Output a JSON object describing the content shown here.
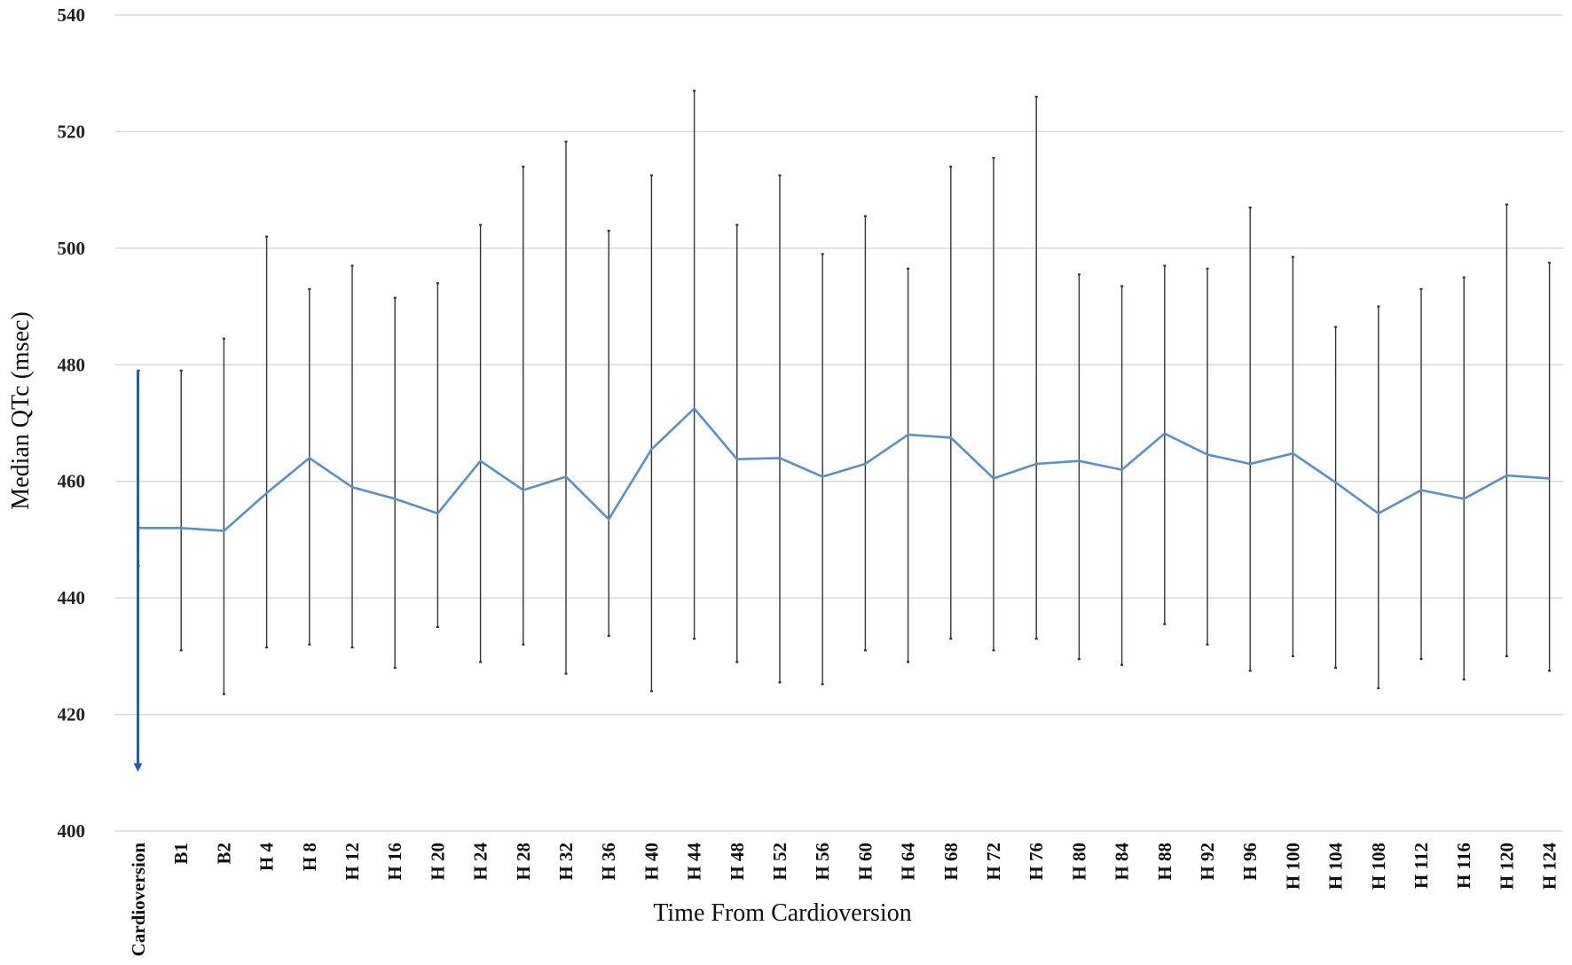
{
  "chart_data": {
    "type": "line",
    "title": "",
    "xlabel": "Time From Cardioversion",
    "ylabel": "Median QTc (msec)",
    "ylim": [
      400,
      540
    ],
    "yticks": [
      400,
      420,
      440,
      460,
      480,
      500,
      520,
      540
    ],
    "grid": true,
    "legend": "none",
    "categories": [
      "Cardioversion",
      "B1",
      "B2",
      "H 4",
      "H 8",
      "H 12",
      "H 16",
      "H 20",
      "H 24",
      "H 28",
      "H 32",
      "H 36",
      "H 40",
      "H 44",
      "H 48",
      "H 52",
      "H 56",
      "H 60",
      "H 64",
      "H 68",
      "H 72",
      "H 76",
      "H 80",
      "H 84",
      "H 88",
      "H 92",
      "H 96",
      "H 100",
      "H 104",
      "H 108",
      "H 112",
      "H 116",
      "H 120",
      "H 124"
    ],
    "series": [
      {
        "values": [
          452,
          452,
          451.5,
          458,
          464,
          459,
          457,
          454.5,
          463.5,
          458.5,
          460.8,
          453.5,
          465.5,
          472.5,
          463.8,
          464,
          460.8,
          463,
          468,
          467.5,
          460.5,
          463,
          463.5,
          462,
          468.2,
          464.6,
          463,
          464.8,
          459.8,
          454.5,
          458.5,
          457,
          461,
          460.5
        ],
        "error_high": [
          479,
          479,
          484.5,
          502,
          493,
          497,
          491.5,
          494,
          504,
          514,
          518.3,
          503,
          512.5,
          527,
          504,
          512.5,
          499,
          505.5,
          496.5,
          514,
          515.5,
          526,
          495.5,
          493.5,
          497,
          496.5,
          507,
          498.5,
          486.5,
          490,
          493,
          495,
          507.5,
          497.5
        ],
        "error_low": [
          445.5,
          431,
          423.5,
          431.5,
          432,
          431.5,
          428,
          435,
          429,
          432,
          427,
          433.5,
          424,
          433,
          429,
          425.5,
          425.2,
          431,
          429,
          433,
          431,
          433,
          429.5,
          428.5,
          435.5,
          432,
          427.5,
          430,
          428,
          424.5,
          429.5,
          426,
          430,
          427.5
        ]
      }
    ],
    "annotation": {
      "type": "arrow",
      "category": "Cardioversion",
      "from": 479,
      "to": 410
    }
  },
  "colors": {
    "line": "#5b8fc7",
    "arrow": "#1f5fa8",
    "error_bars": "#333333",
    "grid": "#d9d9d9"
  }
}
